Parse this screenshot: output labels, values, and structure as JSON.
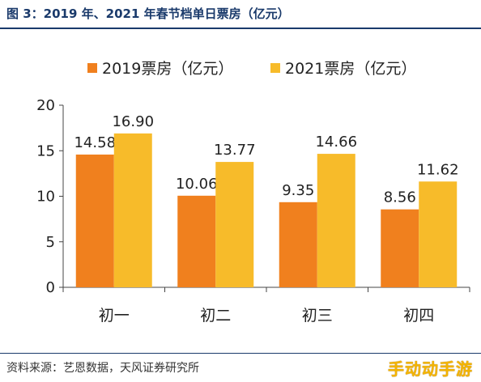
{
  "header": {
    "title": "图 3：2019 年、2021 年春节档单日票房（亿元）"
  },
  "footer": {
    "source": "资料来源：艺恩数据，天风证券研究所",
    "watermark": "手动动手游"
  },
  "colors": {
    "title": "#1a3a6b",
    "series_2019": "#f0801e",
    "series_2021": "#f7bb2a"
  },
  "chart_data": {
    "type": "bar",
    "title": "",
    "xlabel": "",
    "ylabel": "",
    "categories": [
      "初一",
      "初二",
      "初三",
      "初四"
    ],
    "series": [
      {
        "name": "2019票房（亿元）",
        "values": [
          14.58,
          10.06,
          9.35,
          8.56
        ],
        "color": "#f0801e"
      },
      {
        "name": "2021票房（亿元）",
        "values": [
          16.9,
          13.77,
          14.66,
          11.62
        ],
        "color": "#f7bb2a"
      }
    ],
    "data_labels": [
      [
        "14.58",
        "10.06",
        "9.35",
        "8.56"
      ],
      [
        "16.90",
        "13.77",
        "14.66",
        "11.62"
      ]
    ],
    "ylim": [
      0,
      20
    ],
    "yticks": [
      "0",
      "5",
      "10",
      "15",
      "20"
    ],
    "grid": false,
    "legend": "top"
  }
}
